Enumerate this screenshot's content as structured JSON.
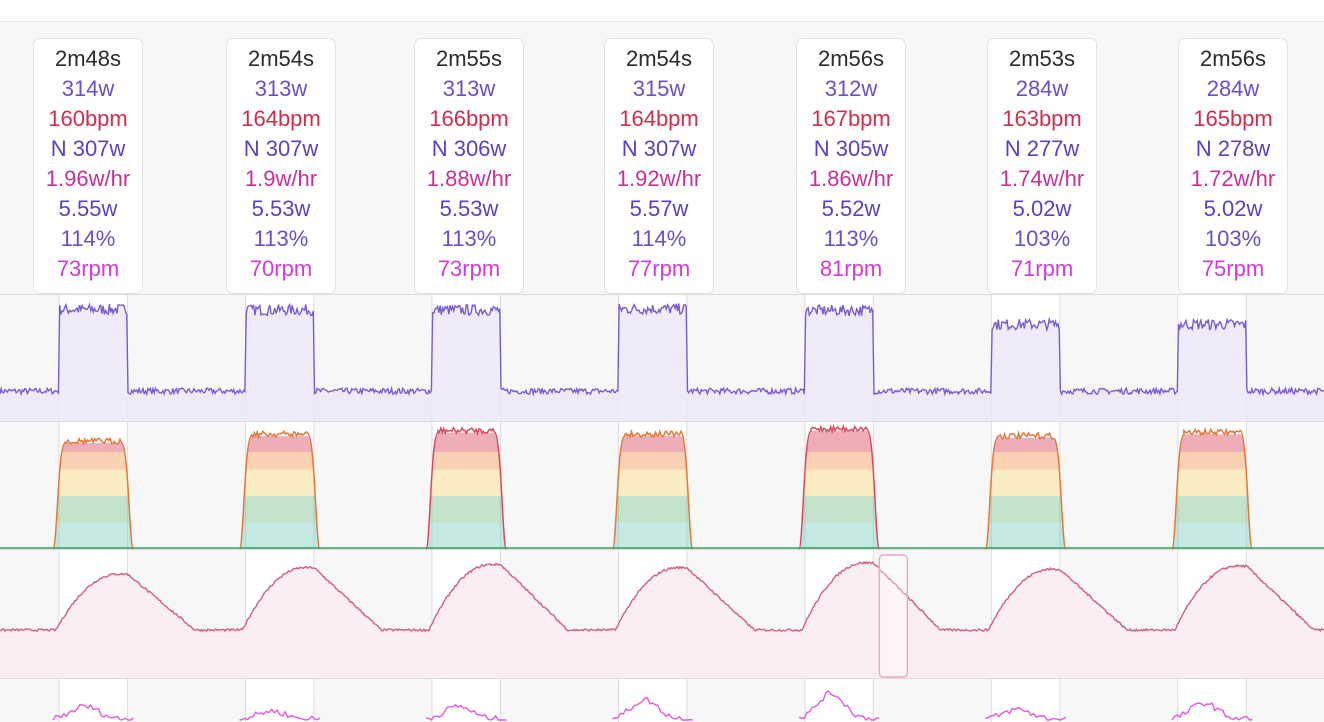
{
  "colors": {
    "power": "#7b5ccf",
    "heart_rate": "#cc6085",
    "cadence": "#e05ae0",
    "zone_red": "#d94a5f",
    "zone_orange": "#f39a55",
    "zone_yellow": "#f7d67a",
    "zone_green": "#7fc08f",
    "zone_teal": "#7fcfc0"
  },
  "intervals": [
    {
      "duration": "2m48s",
      "avg_power": "314w",
      "avg_hr": "160bpm",
      "np": "N 307w",
      "w_per_hr": "1.96w/hr",
      "w_kg": "5.55w",
      "pct_ftp": "114%",
      "cadence": "73rpm"
    },
    {
      "duration": "2m54s",
      "avg_power": "313w",
      "avg_hr": "164bpm",
      "np": "N 307w",
      "w_per_hr": "1.9w/hr",
      "w_kg": "5.53w",
      "pct_ftp": "113%",
      "cadence": "70rpm"
    },
    {
      "duration": "2m55s",
      "avg_power": "313w",
      "avg_hr": "166bpm",
      "np": "N 306w",
      "w_per_hr": "1.88w/hr",
      "w_kg": "5.53w",
      "pct_ftp": "113%",
      "cadence": "73rpm"
    },
    {
      "duration": "2m54s",
      "avg_power": "315w",
      "avg_hr": "164bpm",
      "np": "N 307w",
      "w_per_hr": "1.92w/hr",
      "w_kg": "5.57w",
      "pct_ftp": "114%",
      "cadence": "77rpm"
    },
    {
      "duration": "2m56s",
      "avg_power": "312w",
      "avg_hr": "167bpm",
      "np": "N 305w",
      "w_per_hr": "1.86w/hr",
      "w_kg": "5.52w",
      "pct_ftp": "113%",
      "cadence": "81rpm"
    },
    {
      "duration": "2m53s",
      "avg_power": "284w",
      "avg_hr": "163bpm",
      "np": "N 277w",
      "w_per_hr": "1.74w/hr",
      "w_kg": "5.02w",
      "pct_ftp": "103%",
      "cadence": "71rpm"
    },
    {
      "duration": "2m56s",
      "avg_power": "284w",
      "avg_hr": "165bpm",
      "np": "N 278w",
      "w_per_hr": "1.72w/hr",
      "w_kg": "5.02w",
      "pct_ftp": "103%",
      "cadence": "75rpm"
    }
  ],
  "chart_data": {
    "type": "line",
    "x_unit": "interval",
    "grid": true,
    "legend": "none",
    "interval_windows": [
      [
        0.95,
        2.05
      ],
      [
        3.95,
        5.05
      ],
      [
        6.95,
        8.05
      ],
      [
        9.95,
        11.05
      ],
      [
        12.95,
        14.05
      ],
      [
        15.95,
        17.05
      ],
      [
        18.95,
        20.05
      ]
    ],
    "series": [
      {
        "key": "power",
        "baseline": 150,
        "levels": [
          314,
          313,
          313,
          315,
          312,
          284,
          284
        ]
      },
      {
        "key": "heart_rate_zones",
        "levels": [
          160,
          164,
          166,
          164,
          167,
          163,
          165
        ],
        "zones": [
          115,
          130,
          145,
          155
        ]
      },
      {
        "key": "heart_rate",
        "levels": [
          160,
          164,
          166,
          164,
          167,
          163,
          165
        ],
        "baseline": 125
      },
      {
        "key": "cadence",
        "levels": [
          73,
          70,
          73,
          77,
          81,
          71,
          75
        ]
      }
    ],
    "selection": {
      "series": "heart_rate",
      "interval_index": 4
    }
  }
}
